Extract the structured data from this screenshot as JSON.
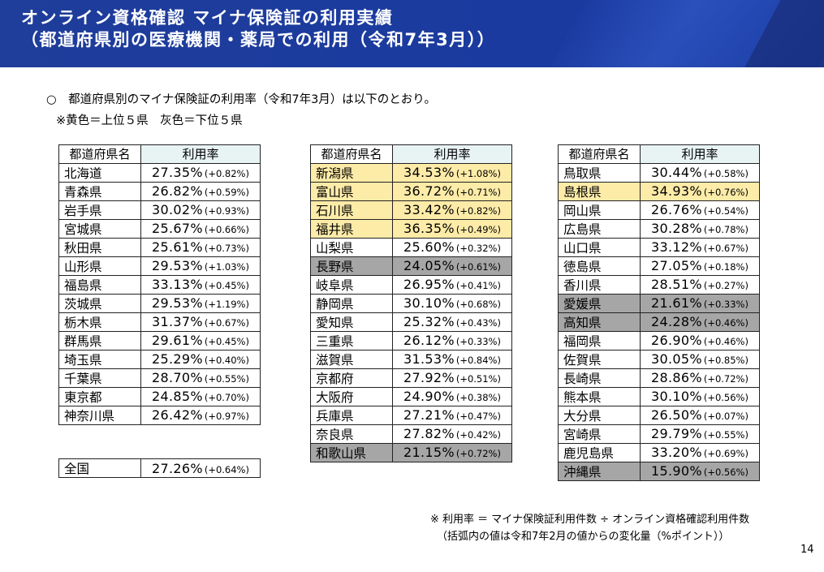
{
  "header": {
    "title_line1": "オンライン資格確認 マイナ保険証の利用実績",
    "title_line2": "（都道府県別の医療機関・薬局での利用（令和7年3月））"
  },
  "intro": {
    "line1": "○　都道府県別のマイナ保険証の利用率（令和7年3月）は以下のとおり。",
    "line2": "※黄色＝上位５県　灰色＝下位５県"
  },
  "highlight_colors": {
    "top5": "#fdeba8",
    "bottom5": "#a6a6a6",
    "header_rate_bg": "#e8f3f4"
  },
  "table_headers": {
    "name": "都道府県名",
    "rate": "利用率"
  },
  "tables": [
    {
      "rows": [
        {
          "name": "北海道",
          "rate": "27.35%",
          "change": "(+0.82%)",
          "hl": ""
        },
        {
          "name": "青森県",
          "rate": "26.82%",
          "change": "(+0.59%)",
          "hl": ""
        },
        {
          "name": "岩手県",
          "rate": "30.02%",
          "change": "(+0.93%)",
          "hl": ""
        },
        {
          "name": "宮城県",
          "rate": "25.67%",
          "change": "(+0.66%)",
          "hl": ""
        },
        {
          "name": "秋田県",
          "rate": "25.61%",
          "change": "(+0.73%)",
          "hl": ""
        },
        {
          "name": "山形県",
          "rate": "29.53%",
          "change": "(+1.03%)",
          "hl": ""
        },
        {
          "name": "福島県",
          "rate": "33.13%",
          "change": "(+0.45%)",
          "hl": ""
        },
        {
          "name": "茨城県",
          "rate": "29.53%",
          "change": "(+1.19%)",
          "hl": ""
        },
        {
          "name": "栃木県",
          "rate": "31.37%",
          "change": "(+0.67%)",
          "hl": ""
        },
        {
          "name": "群馬県",
          "rate": "29.61%",
          "change": "(+0.45%)",
          "hl": ""
        },
        {
          "name": "埼玉県",
          "rate": "25.29%",
          "change": "(+0.40%)",
          "hl": ""
        },
        {
          "name": "千葉県",
          "rate": "28.70%",
          "change": "(+0.55%)",
          "hl": ""
        },
        {
          "name": "東京都",
          "rate": "24.85%",
          "change": "(+0.70%)",
          "hl": ""
        },
        {
          "name": "神奈川県",
          "rate": "26.42%",
          "change": "(+0.97%)",
          "hl": ""
        }
      ]
    },
    {
      "rows": [
        {
          "name": "新潟県",
          "rate": "34.53%",
          "change": "(+1.08%)",
          "hl": "top"
        },
        {
          "name": "富山県",
          "rate": "36.72%",
          "change": "(+0.71%)",
          "hl": "top"
        },
        {
          "name": "石川県",
          "rate": "33.42%",
          "change": "(+0.82%)",
          "hl": "top"
        },
        {
          "name": "福井県",
          "rate": "36.35%",
          "change": "(+0.49%)",
          "hl": "top"
        },
        {
          "name": "山梨県",
          "rate": "25.60%",
          "change": "(+0.32%)",
          "hl": ""
        },
        {
          "name": "長野県",
          "rate": "24.05%",
          "change": "(+0.61%)",
          "hl": "bottom"
        },
        {
          "name": "岐阜県",
          "rate": "26.95%",
          "change": "(+0.41%)",
          "hl": ""
        },
        {
          "name": "静岡県",
          "rate": "30.10%",
          "change": "(+0.68%)",
          "hl": ""
        },
        {
          "name": "愛知県",
          "rate": "25.32%",
          "change": "(+0.43%)",
          "hl": ""
        },
        {
          "name": "三重県",
          "rate": "26.12%",
          "change": "(+0.33%)",
          "hl": ""
        },
        {
          "name": "滋賀県",
          "rate": "31.53%",
          "change": "(+0.84%)",
          "hl": ""
        },
        {
          "name": "京都府",
          "rate": "27.92%",
          "change": "(+0.51%)",
          "hl": ""
        },
        {
          "name": "大阪府",
          "rate": "24.90%",
          "change": "(+0.38%)",
          "hl": ""
        },
        {
          "name": "兵庫県",
          "rate": "27.21%",
          "change": "(+0.47%)",
          "hl": ""
        },
        {
          "name": "奈良県",
          "rate": "27.82%",
          "change": "(+0.42%)",
          "hl": ""
        },
        {
          "name": "和歌山県",
          "rate": "21.15%",
          "change": "(+0.72%)",
          "hl": "bottom"
        }
      ]
    },
    {
      "rows": [
        {
          "name": "鳥取県",
          "rate": "30.44%",
          "change": "(+0.58%)",
          "hl": ""
        },
        {
          "name": "島根県",
          "rate": "34.93%",
          "change": "(+0.76%)",
          "hl": "top"
        },
        {
          "name": "岡山県",
          "rate": "26.76%",
          "change": "(+0.54%)",
          "hl": ""
        },
        {
          "name": "広島県",
          "rate": "30.28%",
          "change": "(+0.78%)",
          "hl": ""
        },
        {
          "name": "山口県",
          "rate": "33.12%",
          "change": "(+0.67%)",
          "hl": ""
        },
        {
          "name": "徳島県",
          "rate": "27.05%",
          "change": "(+0.18%)",
          "hl": ""
        },
        {
          "name": "香川県",
          "rate": "28.51%",
          "change": "(+0.27%)",
          "hl": ""
        },
        {
          "name": "愛媛県",
          "rate": "21.61%",
          "change": "(+0.33%)",
          "hl": "bottom"
        },
        {
          "name": "高知県",
          "rate": "24.28%",
          "change": "(+0.46%)",
          "hl": "bottom"
        },
        {
          "name": "福岡県",
          "rate": "26.90%",
          "change": "(+0.46%)",
          "hl": ""
        },
        {
          "name": "佐賀県",
          "rate": "30.05%",
          "change": "(+0.85%)",
          "hl": ""
        },
        {
          "name": "長崎県",
          "rate": "28.86%",
          "change": "(+0.72%)",
          "hl": ""
        },
        {
          "name": "熊本県",
          "rate": "30.10%",
          "change": "(+0.56%)",
          "hl": ""
        },
        {
          "name": "大分県",
          "rate": "26.50%",
          "change": "(+0.07%)",
          "hl": ""
        },
        {
          "name": "宮崎県",
          "rate": "29.79%",
          "change": "(+0.55%)",
          "hl": ""
        },
        {
          "name": "鹿児島県",
          "rate": "33.20%",
          "change": "(+0.69%)",
          "hl": ""
        },
        {
          "name": "沖縄県",
          "rate": "15.90%",
          "change": "(+0.56%)",
          "hl": "bottom"
        }
      ]
    }
  ],
  "national": {
    "name": "全国",
    "rate": "27.26%",
    "change": "(+0.64%)"
  },
  "note": {
    "line1": "※ 利用率 ＝ マイナ保険証利用件数 ÷ オンライン資格確認利用件数",
    "line2": "（括弧内の値は令和7年2月の値からの変化量（%ポイント））"
  },
  "page_number": "14"
}
